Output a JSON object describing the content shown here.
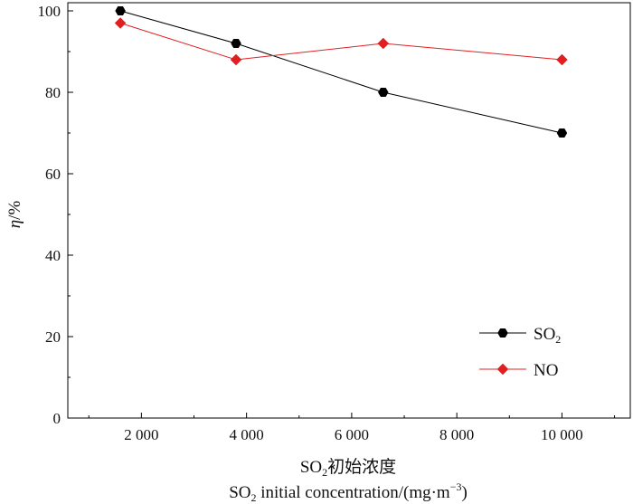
{
  "chart_data": {
    "type": "line",
    "x": [
      1600,
      3800,
      6600,
      10000
    ],
    "series": [
      {
        "name": "SO₂",
        "label_base": "SO",
        "label_sub": "2",
        "values": [
          100,
          92,
          80,
          70
        ],
        "color": "#000000",
        "marker": "hexagon"
      },
      {
        "name": "NO",
        "label_base": "NO",
        "label_sub": "",
        "values": [
          97,
          88,
          92,
          88
        ],
        "color": "#e02020",
        "marker": "diamond"
      }
    ],
    "xlim": [
      600,
      11300
    ],
    "ylim": [
      0,
      100
    ],
    "xticks": [
      2000,
      4000,
      6000,
      8000,
      10000
    ],
    "xtick_labels": [
      "2 000",
      "4 000",
      "6 000",
      "8 000",
      "10 000"
    ],
    "yticks": [
      0,
      20,
      40,
      60,
      80,
      100
    ],
    "ytick_labels": [
      "0",
      "20",
      "40",
      "60",
      "80",
      "100"
    ],
    "ylabel_italic": "η",
    "ylabel_rest": "/%",
    "xlabel_line1_base": "SO",
    "xlabel_line1_sub": "2",
    "xlabel_line1_rest": "初始浓度",
    "xlabel_line2_base": "SO",
    "xlabel_line2_sub": "2",
    "xlabel_line2_rest": " initial concentration/(mg·m",
    "xlabel_line2_sup": "−3",
    "xlabel_line2_end": ")",
    "legend_position": "bottom-right",
    "grid": false
  }
}
